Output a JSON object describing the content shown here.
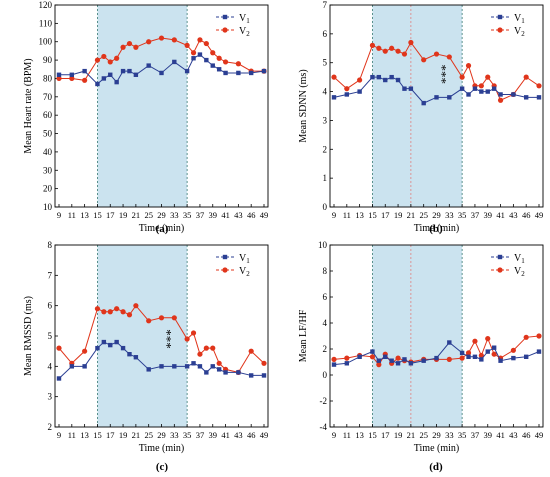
{
  "colors": {
    "v1": "#2b3f93",
    "v2": "#e0351b",
    "shade": "#b9d9ea",
    "shade_border": "#3a7a74",
    "vline": "#e08080"
  },
  "chart_data": [
    {
      "type": "line",
      "panel_label": "(a)",
      "xlabel": "Time (min)",
      "ylabel": "Mean Heart rate (BPM)",
      "ylim": [
        10,
        120
      ],
      "yticks": [
        "10",
        "20",
        "30",
        "40",
        "50",
        "60",
        "70",
        "80",
        "90",
        "100",
        "110",
        "120"
      ],
      "xticks": [
        "9",
        "11",
        "13",
        "15",
        "17",
        "19",
        "21",
        "25",
        "29",
        "33",
        "35",
        "37",
        "39",
        "41",
        "43",
        "46",
        "49"
      ],
      "xlim": [
        9,
        49
      ],
      "shaded_range": [
        15,
        35
      ],
      "grid": false,
      "legend_position": "top-right",
      "series": [
        {
          "name": "V1",
          "x": [
            9,
            11,
            13,
            15,
            16,
            17,
            18,
            19,
            20,
            21,
            25,
            29,
            33,
            35,
            36,
            37,
            38,
            39,
            40,
            41,
            43,
            46,
            49
          ],
          "y": [
            82,
            82,
            84,
            77,
            80,
            82,
            78,
            84,
            84,
            82,
            87,
            83,
            89,
            84,
            91,
            93,
            90,
            87,
            85,
            83,
            83,
            83,
            84
          ]
        },
        {
          "name": "V2",
          "x": [
            9,
            11,
            13,
            15,
            16,
            17,
            18,
            19,
            20,
            21,
            25,
            29,
            33,
            35,
            36,
            37,
            38,
            39,
            40,
            41,
            43,
            46,
            49
          ],
          "y": [
            80,
            80,
            79,
            90,
            92,
            89,
            91,
            97,
            99,
            97,
            100,
            102,
            101,
            98,
            94,
            101,
            99,
            94,
            91,
            89,
            88,
            84,
            84
          ]
        }
      ]
    },
    {
      "type": "line",
      "panel_label": "(b)",
      "xlabel": "Time (min)",
      "ylabel": "Mean SDNN (ms)",
      "ylim": [
        0,
        7
      ],
      "yticks": [
        "0",
        "1",
        "2",
        "3",
        "4",
        "5",
        "6",
        "7"
      ],
      "xticks": [
        "9",
        "11",
        "13",
        "15",
        "17",
        "19",
        "21",
        "25",
        "29",
        "33",
        "35",
        "37",
        "39",
        "41",
        "43",
        "46",
        "49"
      ],
      "xlim": [
        9,
        49
      ],
      "shaded_range": [
        15,
        35
      ],
      "vlines": [
        21
      ],
      "annotation": "***",
      "grid": false,
      "legend_position": "top-right",
      "series": [
        {
          "name": "V1",
          "x": [
            9,
            11,
            13,
            15,
            16,
            17,
            18,
            19,
            20,
            21,
            25,
            29,
            33,
            35,
            36,
            37,
            38,
            39,
            40,
            41,
            43,
            46,
            49
          ],
          "y": [
            3.8,
            3.9,
            4.0,
            4.5,
            4.5,
            4.4,
            4.5,
            4.4,
            4.1,
            4.1,
            3.6,
            3.8,
            3.8,
            4.1,
            3.9,
            4.1,
            4.0,
            4.0,
            4.1,
            3.9,
            3.9,
            3.8,
            3.8
          ]
        },
        {
          "name": "V2",
          "x": [
            9,
            11,
            13,
            15,
            16,
            17,
            18,
            19,
            20,
            21,
            25,
            29,
            33,
            35,
            36,
            37,
            38,
            39,
            40,
            41,
            43,
            46,
            49
          ],
          "y": [
            4.5,
            4.1,
            4.4,
            5.6,
            5.5,
            5.4,
            5.5,
            5.4,
            5.3,
            5.7,
            5.1,
            5.3,
            5.2,
            4.5,
            4.9,
            4.2,
            4.2,
            4.5,
            4.2,
            3.7,
            3.9,
            4.5,
            4.2
          ]
        }
      ]
    },
    {
      "type": "line",
      "panel_label": "(c)",
      "xlabel": "Time (min)",
      "ylabel": "Mean RMSSD (ms)",
      "ylim": [
        2,
        8
      ],
      "yticks": [
        "2",
        "3",
        "4",
        "5",
        "6",
        "7",
        "8"
      ],
      "xticks": [
        "9",
        "11",
        "13",
        "15",
        "17",
        "19",
        "21",
        "25",
        "29",
        "33",
        "35",
        "37",
        "39",
        "41",
        "43",
        "46",
        "49"
      ],
      "xlim": [
        9,
        49
      ],
      "shaded_range": [
        15,
        35
      ],
      "annotation": "***",
      "grid": false,
      "legend_position": "top-right",
      "series": [
        {
          "name": "V1",
          "x": [
            9,
            11,
            13,
            15,
            16,
            17,
            18,
            19,
            20,
            21,
            25,
            29,
            33,
            35,
            36,
            37,
            38,
            39,
            40,
            41,
            43,
            46,
            49
          ],
          "y": [
            3.6,
            4.0,
            4.0,
            4.6,
            4.8,
            4.7,
            4.8,
            4.6,
            4.4,
            4.3,
            3.9,
            4.0,
            4.0,
            4.0,
            4.1,
            4.0,
            3.8,
            4.0,
            3.9,
            3.8,
            3.8,
            3.7,
            3.7
          ]
        },
        {
          "name": "V2",
          "x": [
            9,
            11,
            13,
            15,
            16,
            17,
            18,
            19,
            20,
            21,
            25,
            29,
            33,
            35,
            36,
            37,
            38,
            39,
            40,
            41,
            43,
            46,
            49
          ],
          "y": [
            4.6,
            4.1,
            4.5,
            5.9,
            5.8,
            5.8,
            5.9,
            5.8,
            5.7,
            6.0,
            5.5,
            5.6,
            5.6,
            4.9,
            5.1,
            4.4,
            4.6,
            4.6,
            4.1,
            3.9,
            3.8,
            4.5,
            4.1
          ]
        }
      ]
    },
    {
      "type": "line",
      "panel_label": "(d)",
      "xlabel": "Time (min)",
      "ylabel": "Mean LF/HF",
      "ylim": [
        -4,
        10
      ],
      "yticks": [
        "-4",
        "-2",
        "0",
        "2",
        "4",
        "6",
        "8",
        "10"
      ],
      "xticks": [
        "9",
        "11",
        "13",
        "15",
        "17",
        "19",
        "21",
        "25",
        "29",
        "33",
        "35",
        "37",
        "39",
        "41",
        "43",
        "46",
        "49"
      ],
      "xlim": [
        9,
        49
      ],
      "shaded_range": [
        15,
        35
      ],
      "vlines": [
        21
      ],
      "grid": false,
      "legend_position": "top-right",
      "series": [
        {
          "name": "V1",
          "x": [
            9,
            11,
            13,
            15,
            16,
            17,
            18,
            19,
            20,
            21,
            25,
            29,
            33,
            35,
            36,
            37,
            38,
            39,
            40,
            41,
            43,
            46,
            49
          ],
          "y": [
            0.8,
            0.9,
            1.4,
            1.8,
            1.1,
            1.4,
            1.1,
            0.9,
            1.2,
            0.9,
            1.1,
            1.3,
            2.5,
            1.7,
            1.4,
            1.4,
            1.2,
            1.8,
            2.1,
            1.1,
            1.3,
            1.4,
            1.8
          ]
        },
        {
          "name": "V2",
          "x": [
            9,
            11,
            13,
            15,
            16,
            17,
            18,
            19,
            20,
            21,
            25,
            29,
            33,
            35,
            36,
            37,
            38,
            39,
            40,
            41,
            43,
            46,
            49
          ],
          "y": [
            1.2,
            1.3,
            1.5,
            1.4,
            0.8,
            1.6,
            0.9,
            1.3,
            1.1,
            1.0,
            1.2,
            1.2,
            1.2,
            1.3,
            1.7,
            2.6,
            1.5,
            2.8,
            1.6,
            1.3,
            1.9,
            2.9,
            3.0
          ]
        }
      ]
    }
  ]
}
